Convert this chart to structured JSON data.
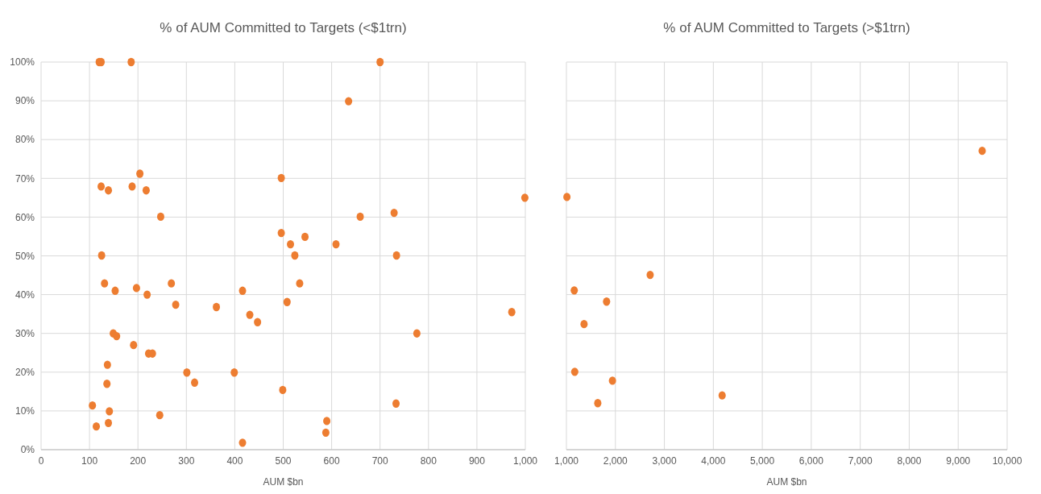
{
  "chart_data": [
    {
      "type": "scatter",
      "title": "% of AUM Committed to Targets (<$1trn)",
      "xlabel": "AUM $bn",
      "color": "#ed7d31",
      "marker": "circle",
      "grid": true,
      "x": [
        120,
        124,
        186,
        700,
        635,
        204,
        124,
        139,
        188,
        217,
        247,
        496,
        999,
        659,
        729,
        496,
        125,
        545,
        515,
        609,
        524,
        734,
        131,
        153,
        197,
        219,
        269,
        278,
        362,
        416,
        431,
        447,
        508,
        534,
        972,
        149,
        156,
        191,
        222,
        230,
        776,
        137,
        136,
        301,
        317,
        399,
        499,
        106,
        141,
        733,
        114,
        139,
        245,
        590,
        588,
        416
      ],
      "values": [
        100,
        100,
        100,
        100,
        89.9,
        71.2,
        67.9,
        66.9,
        67.9,
        66.9,
        60.1,
        70.1,
        65,
        60.1,
        61.1,
        55.9,
        50.1,
        54.9,
        53,
        53,
        50.1,
        50.1,
        42.9,
        41,
        41.7,
        40,
        42.9,
        37.4,
        36.8,
        41,
        34.8,
        32.9,
        38.1,
        42.9,
        35.5,
        30,
        29.3,
        27,
        24.8,
        24.8,
        30,
        21.9,
        17,
        19.9,
        17.3,
        19.9,
        15.4,
        11.4,
        9.9,
        11.9,
        6,
        6.9,
        8.9,
        7.4,
        4.4,
        1.8
      ],
      "xlim": [
        0,
        1000
      ],
      "xticks": [
        0,
        100,
        200,
        300,
        400,
        500,
        600,
        700,
        800,
        900,
        {
          "value": 1000,
          "label": "1,000"
        }
      ],
      "ylim": [
        0,
        100
      ],
      "yticks": [
        {
          "value": 0,
          "label": "0%"
        },
        {
          "value": 10,
          "label": "10%"
        },
        {
          "value": 20,
          "label": "20%"
        },
        {
          "value": 30,
          "label": "30%"
        },
        {
          "value": 40,
          "label": "40%"
        },
        {
          "value": 50,
          "label": "50%"
        },
        {
          "value": 60,
          "label": "60%"
        },
        {
          "value": 70,
          "label": "70%"
        },
        {
          "value": 80,
          "label": "80%"
        },
        {
          "value": 90,
          "label": "90%"
        },
        {
          "value": 100,
          "label": "100%"
        }
      ]
    },
    {
      "type": "scatter",
      "title": "% of AUM Committed to Targets (>$1trn)",
      "xlabel": "AUM $bn",
      "color": "#ed7d31",
      "marker": "circle",
      "grid": true,
      "tick_labels": "x",
      "x": [
        9490,
        1010,
        2710,
        1160,
        1820,
        1360,
        1170,
        1940,
        1640,
        4180
      ],
      "values": [
        77.1,
        65.2,
        45.1,
        41.1,
        38.2,
        32.4,
        20.1,
        17.8,
        12,
        14
      ],
      "xlim": [
        1000,
        10000
      ],
      "xticks": [
        {
          "value": 1000,
          "label": "1,000"
        },
        {
          "value": 2000,
          "label": "2,000"
        },
        {
          "value": 3000,
          "label": "3,000"
        },
        {
          "value": 4000,
          "label": "4,000"
        },
        {
          "value": 5000,
          "label": "5,000"
        },
        {
          "value": 6000,
          "label": "6,000"
        },
        {
          "value": 7000,
          "label": "7,000"
        },
        {
          "value": 8000,
          "label": "8,000"
        },
        {
          "value": 9000,
          "label": "9,000"
        },
        {
          "value": 10000,
          "label": "10,000"
        }
      ],
      "ylim": [
        0,
        100
      ],
      "yticks": [
        0,
        10,
        20,
        30,
        40,
        50,
        60,
        70,
        80,
        90,
        100
      ]
    }
  ]
}
